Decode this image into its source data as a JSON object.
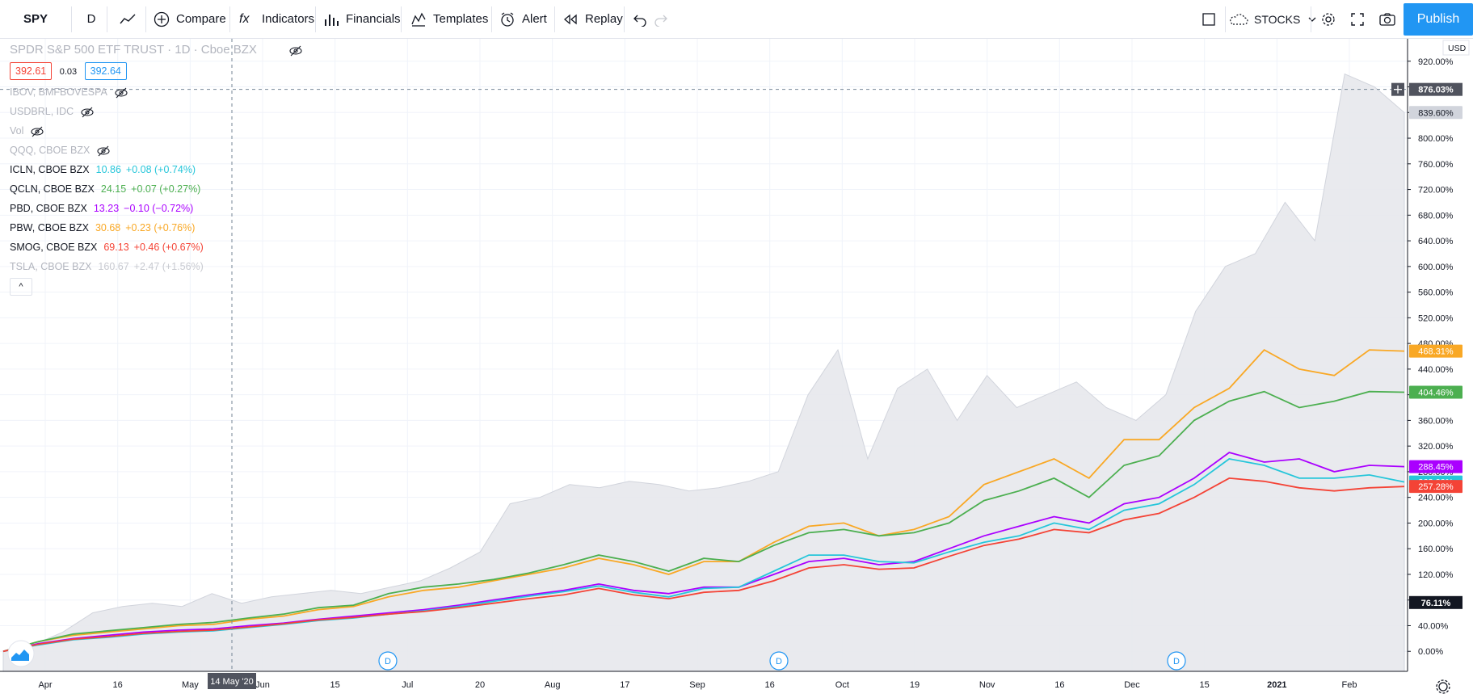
{
  "toolbar": {
    "symbol": "SPY",
    "interval": "D",
    "compare": "Compare",
    "indicators": "Indicators",
    "financials": "Financials",
    "templates": "Templates",
    "alert": "Alert",
    "replay": "Replay",
    "layout_name": "STOCKS",
    "publish": "Publish"
  },
  "header": {
    "title": "SPDR S&P 500 ETF TRUST · 1D · Cboe BZX",
    "bid": "392.61",
    "spread": "0.03",
    "ask": "392.64"
  },
  "legend": [
    {
      "name": "IBOV, BMFBOVESPA",
      "value": "",
      "change": "",
      "color": "#b2b5be",
      "hidden": true
    },
    {
      "name": "USDBRL, IDC",
      "value": "",
      "change": "",
      "color": "#b2b5be",
      "hidden": true
    },
    {
      "name": "Vol",
      "value": "",
      "change": "",
      "color": "#b2b5be",
      "hidden": true
    },
    {
      "name": "QQQ, CBOE BZX",
      "value": "",
      "change": "",
      "color": "#b2b5be",
      "hidden": true
    },
    {
      "name": "ICLN, CBOE BZX",
      "value": "10.86",
      "change": "+0.08 (+0.74%)",
      "color": "#26c6da",
      "hidden": false
    },
    {
      "name": "QCLN, CBOE BZX",
      "value": "24.15",
      "change": "+0.07 (+0.27%)",
      "color": "#4caf50",
      "hidden": false
    },
    {
      "name": "PBD, CBOE BZX",
      "value": "13.23",
      "change": "−0.10 (−0.72%)",
      "color": "#aa00ff",
      "hidden": false
    },
    {
      "name": "PBW, CBOE BZX",
      "value": "30.68",
      "change": "+0.23 (+0.76%)",
      "color": "#f9a825",
      "hidden": false
    },
    {
      "name": "SMOG, CBOE BZX",
      "value": "69.13",
      "change": "+0.46 (+0.67%)",
      "color": "#f44336",
      "hidden": false
    },
    {
      "name": "TSLA, CBOE BZX",
      "value": "160.67",
      "change": "+2.47 (+1.56%)",
      "color": "#c8cad0",
      "hidden": false
    }
  ],
  "crosshair": {
    "date": "14 May '20",
    "value": "876.03%"
  },
  "axis_unit": "USD",
  "chart_data": {
    "type": "line",
    "x_labels": [
      "Apr",
      "16",
      "May",
      "Jun",
      "15",
      "Jul",
      "20",
      "Aug",
      "17",
      "Sep",
      "16",
      "Oct",
      "19",
      "Nov",
      "16",
      "Dec",
      "15",
      "2021",
      "Feb"
    ],
    "ylim": [
      -40,
      960
    ],
    "y_ticks": [
      -40,
      0,
      40,
      80,
      120,
      160,
      200,
      240,
      280,
      320,
      360,
      400,
      440,
      480,
      520,
      560,
      600,
      640,
      680,
      720,
      760,
      800,
      840,
      880,
      920,
      960
    ],
    "y_unit": "%",
    "series": [
      {
        "name": "TSLA",
        "color": "#c8cad0",
        "style": "area",
        "last_label": "839.60%",
        "values": [
          0,
          10,
          30,
          60,
          70,
          75,
          70,
          90,
          75,
          85,
          90,
          95,
          90,
          100,
          110,
          130,
          155,
          230,
          240,
          260,
          255,
          265,
          260,
          250,
          255,
          265,
          280,
          400,
          470,
          300,
          410,
          440,
          360,
          430,
          380,
          400,
          420,
          380,
          360,
          400,
          530,
          600,
          620,
          700,
          640,
          900,
          880,
          840
        ]
      },
      {
        "name": "PBW",
        "color": "#f9a825",
        "last_label": "468.31%",
        "values": [
          0,
          15,
          25,
          30,
          35,
          40,
          42,
          50,
          55,
          65,
          70,
          85,
          95,
          100,
          110,
          120,
          130,
          145,
          135,
          120,
          140,
          140,
          170,
          195,
          200,
          180,
          190,
          210,
          260,
          280,
          300,
          270,
          330,
          330,
          380,
          410,
          470,
          440,
          430,
          470,
          468
        ]
      },
      {
        "name": "QCLN",
        "color": "#4caf50",
        "last_label": "404.46%",
        "values": [
          0,
          15,
          27,
          32,
          37,
          42,
          45,
          52,
          58,
          68,
          72,
          90,
          100,
          105,
          112,
          122,
          135,
          150,
          140,
          125,
          145,
          140,
          165,
          185,
          190,
          180,
          185,
          200,
          235,
          250,
          270,
          240,
          290,
          305,
          360,
          390,
          405,
          380,
          390,
          405,
          404
        ]
      },
      {
        "name": "PBD",
        "color": "#aa00ff",
        "last_label": "288.45%",
        "values": [
          0,
          12,
          20,
          25,
          30,
          33,
          35,
          40,
          44,
          50,
          55,
          60,
          65,
          72,
          80,
          88,
          95,
          105,
          95,
          90,
          100,
          100,
          120,
          140,
          145,
          135,
          140,
          160,
          180,
          195,
          210,
          200,
          230,
          240,
          270,
          310,
          295,
          300,
          280,
          290,
          288
        ]
      },
      {
        "name": "ICLN",
        "color": "#26c6da",
        "last_label": "263.99%",
        "values": [
          0,
          10,
          18,
          22,
          27,
          30,
          32,
          37,
          42,
          48,
          52,
          58,
          63,
          70,
          78,
          86,
          93,
          102,
          92,
          85,
          98,
          100,
          125,
          150,
          150,
          140,
          138,
          155,
          170,
          180,
          200,
          190,
          220,
          230,
          260,
          300,
          290,
          270,
          270,
          275,
          264
        ]
      },
      {
        "name": "SMOG",
        "color": "#f44336",
        "last_label": "257.28%",
        "values": [
          0,
          11,
          19,
          23,
          28,
          31,
          33,
          38,
          43,
          49,
          53,
          58,
          62,
          68,
          75,
          82,
          88,
          98,
          88,
          82,
          92,
          95,
          110,
          130,
          135,
          128,
          130,
          148,
          165,
          175,
          190,
          185,
          205,
          215,
          240,
          270,
          265,
          255,
          250,
          255,
          257
        ]
      }
    ],
    "extra_axis_labels": [
      {
        "value": "876.03%",
        "bg": "#50535e"
      },
      {
        "value": "76.11%",
        "bg": "#131722"
      }
    ]
  }
}
